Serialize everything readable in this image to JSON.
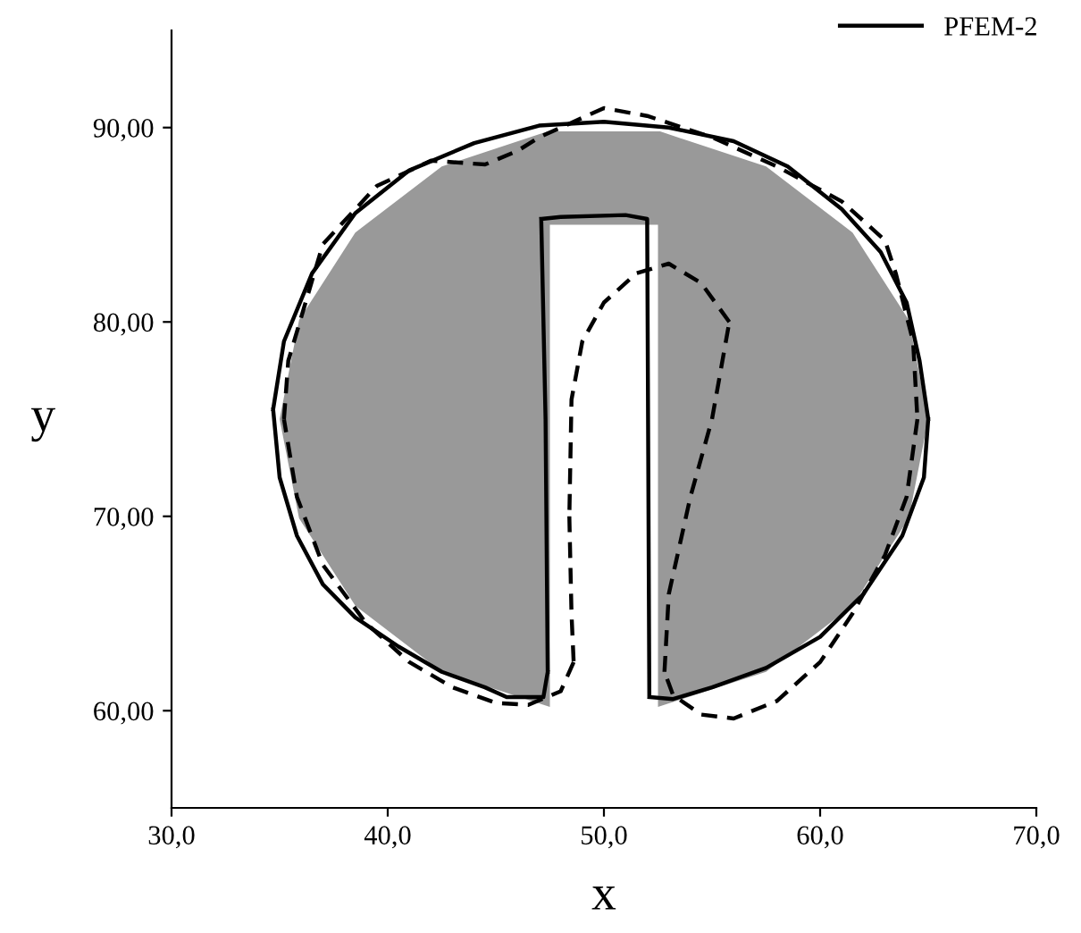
{
  "chart_data": {
    "type": "line",
    "xlabel": "x",
    "ylabel": "y",
    "legend": "top right",
    "xlim": [
      30,
      70
    ],
    "ylim": [
      55,
      95
    ],
    "xticks": [
      {
        "value": 30,
        "label": "30,0"
      },
      {
        "value": 40,
        "label": "40,0"
      },
      {
        "value": 50,
        "label": "50,0"
      },
      {
        "value": 60,
        "label": "60,0"
      },
      {
        "value": 70,
        "label": "70,0"
      }
    ],
    "yticks": [
      {
        "value": 60,
        "label": "60,00"
      },
      {
        "value": 70,
        "label": "70,00"
      },
      {
        "value": 80,
        "label": "80,00"
      },
      {
        "value": 90,
        "label": "90,00"
      }
    ],
    "series": [
      {
        "type": "area",
        "color": "#999999",
        "x": [
          52.5,
          57.5,
          61.5,
          64.1,
          65,
          64.1,
          61.5,
          57.5,
          52.6,
          47.4,
          42.5,
          38.5,
          35.9,
          35,
          35.9,
          38.5,
          42.5,
          47.5,
          47.5,
          52.5
        ],
        "values": [
          60.2,
          62,
          65.4,
          69.9,
          75,
          80.1,
          84.6,
          88,
          89.8,
          89.8,
          88,
          84.6,
          80.1,
          75,
          69.9,
          65.4,
          62,
          60.2,
          85,
          85
        ]
      },
      {
        "type": "line",
        "color": "#000000",
        "line_style": "dashed",
        "x": [
          35.2,
          35.4,
          37,
          39.5,
          42,
          44.5,
          46,
          47,
          50,
          52,
          55,
          58,
          61,
          63,
          63.5,
          64.3,
          64.5,
          null,
          64.5,
          64,
          63,
          61.5,
          60,
          58,
          56,
          54.5,
          53.2,
          52.8,
          null,
          52.8,
          53,
          54,
          55,
          55.8,
          null,
          55.8,
          54.5,
          53,
          51.5,
          50,
          49,
          48.5,
          48.4,
          null,
          48.4,
          48.5,
          48.6,
          null,
          48.6,
          48,
          46.5,
          45,
          43,
          41,
          39,
          37,
          35.8,
          35.2
        ],
        "values": [
          75,
          78,
          84,
          87,
          88.3,
          88.1,
          88.8,
          89.5,
          91,
          90.6,
          89.5,
          88,
          86.2,
          84.2,
          82.5,
          79,
          75,
          null,
          75,
          71,
          68,
          65,
          62.5,
          60.5,
          59.6,
          59.8,
          60.8,
          62,
          null,
          62,
          66,
          71,
          75,
          80,
          null,
          80,
          82,
          83,
          82.5,
          81,
          79,
          76,
          70,
          null,
          70,
          65,
          62.5,
          null,
          62.5,
          61,
          60.3,
          60.4,
          61.2,
          62.5,
          64.5,
          67.5,
          71,
          75
        ]
      },
      {
        "type": "line",
        "name": "PFEM-2",
        "color": "#000000",
        "line_style": "solid",
        "x": [
          52.1,
          53.2,
          55,
          57.5,
          60,
          62,
          63.8,
          64.8,
          65,
          null,
          65,
          64.6,
          64,
          62.8,
          61,
          58.5,
          56,
          53,
          50,
          47,
          44,
          41,
          38.5,
          36.5,
          35.2,
          34.7,
          null,
          34.7,
          35,
          35.8,
          37,
          38.5,
          40.5,
          42.5,
          44.5,
          45.5,
          47.2,
          47.4,
          null,
          47.4,
          47.3,
          47.1,
          null,
          47.1,
          48,
          51,
          52,
          52.1
        ],
        "values": [
          60.7,
          60.6,
          61.2,
          62.2,
          63.8,
          66,
          69,
          72,
          75,
          null,
          75,
          78,
          81,
          83.6,
          85.8,
          88,
          89.3,
          90,
          90.3,
          90.1,
          89.2,
          87.8,
          85.6,
          82.5,
          79,
          75.5,
          null,
          75.5,
          72,
          69,
          66.5,
          64.8,
          63.3,
          62,
          61.2,
          60.7,
          60.7,
          62,
          null,
          62,
          75,
          85.3,
          null,
          85.3,
          85.4,
          85.5,
          85.3,
          60.7
        ]
      }
    ]
  }
}
